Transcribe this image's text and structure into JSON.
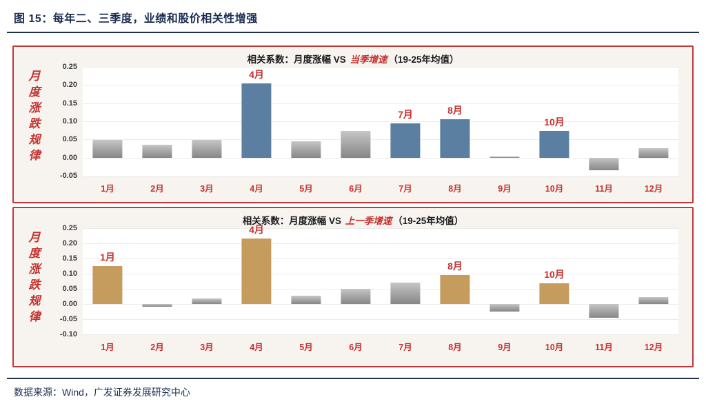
{
  "header": {
    "title": "图 15：每年二、三季度，业绩和股价相关性增强"
  },
  "footer": {
    "source": "数据来源：Wind，广发证券发展研究中心"
  },
  "colors": {
    "accent_red": "#c4322f",
    "panel_border_red": "#c0393b",
    "navy_text": "#1b2e52",
    "bar_blue": "#5b7fa0",
    "bar_gold": "#c69c5e",
    "bar_gray": "#9e9e9e"
  },
  "chart_data": [
    {
      "type": "bar",
      "title": "相关系数：月度涨幅 VS 当季增速（19-25年均值）",
      "title_prefix": "相关系数：月度涨幅 VS ",
      "title_highlight": "当季增速",
      "title_suffix": "（19-25年均值）",
      "side_label": "月度涨跌规律",
      "categories": [
        "1月",
        "2月",
        "3月",
        "4月",
        "5月",
        "6月",
        "7月",
        "8月",
        "9月",
        "10月",
        "11月",
        "12月"
      ],
      "values": [
        0.048,
        0.035,
        0.048,
        0.205,
        0.045,
        0.073,
        0.095,
        0.105,
        0.003,
        0.073,
        -0.035,
        0.026
      ],
      "highlighted_months": [
        "4月",
        "7月",
        "8月",
        "10月"
      ],
      "highlight_color": "#5b7fa0",
      "default_color": "#9e9e9e",
      "ylim": [
        -0.05,
        0.25
      ],
      "yticks": [
        0.25,
        0.2,
        0.15,
        0.1,
        0.05,
        0.0,
        -0.05
      ],
      "grid": true,
      "legend": "none"
    },
    {
      "type": "bar",
      "title": "相关系数：月度涨幅 VS 上一季增速（19-25年均值）",
      "title_prefix": "相关系数：月度涨幅 VS ",
      "title_highlight": "上一季增速",
      "title_suffix": "（19-25年均值）",
      "side_label": "月度涨跌规律",
      "categories": [
        "1月",
        "2月",
        "3月",
        "4月",
        "5月",
        "6月",
        "7月",
        "8月",
        "9月",
        "10月",
        "11月",
        "12月"
      ],
      "values": [
        0.125,
        -0.008,
        0.018,
        0.215,
        0.027,
        0.05,
        0.07,
        0.095,
        -0.025,
        0.068,
        -0.045,
        0.022
      ],
      "highlighted_months": [
        "1月",
        "4月",
        "8月",
        "10月"
      ],
      "highlight_color": "#c69c5e",
      "default_color": "#9e9e9e",
      "ylim": [
        -0.1,
        0.25
      ],
      "yticks": [
        0.25,
        0.2,
        0.15,
        0.1,
        0.05,
        0.0,
        -0.05,
        -0.1
      ],
      "grid": true,
      "legend": "none"
    }
  ]
}
